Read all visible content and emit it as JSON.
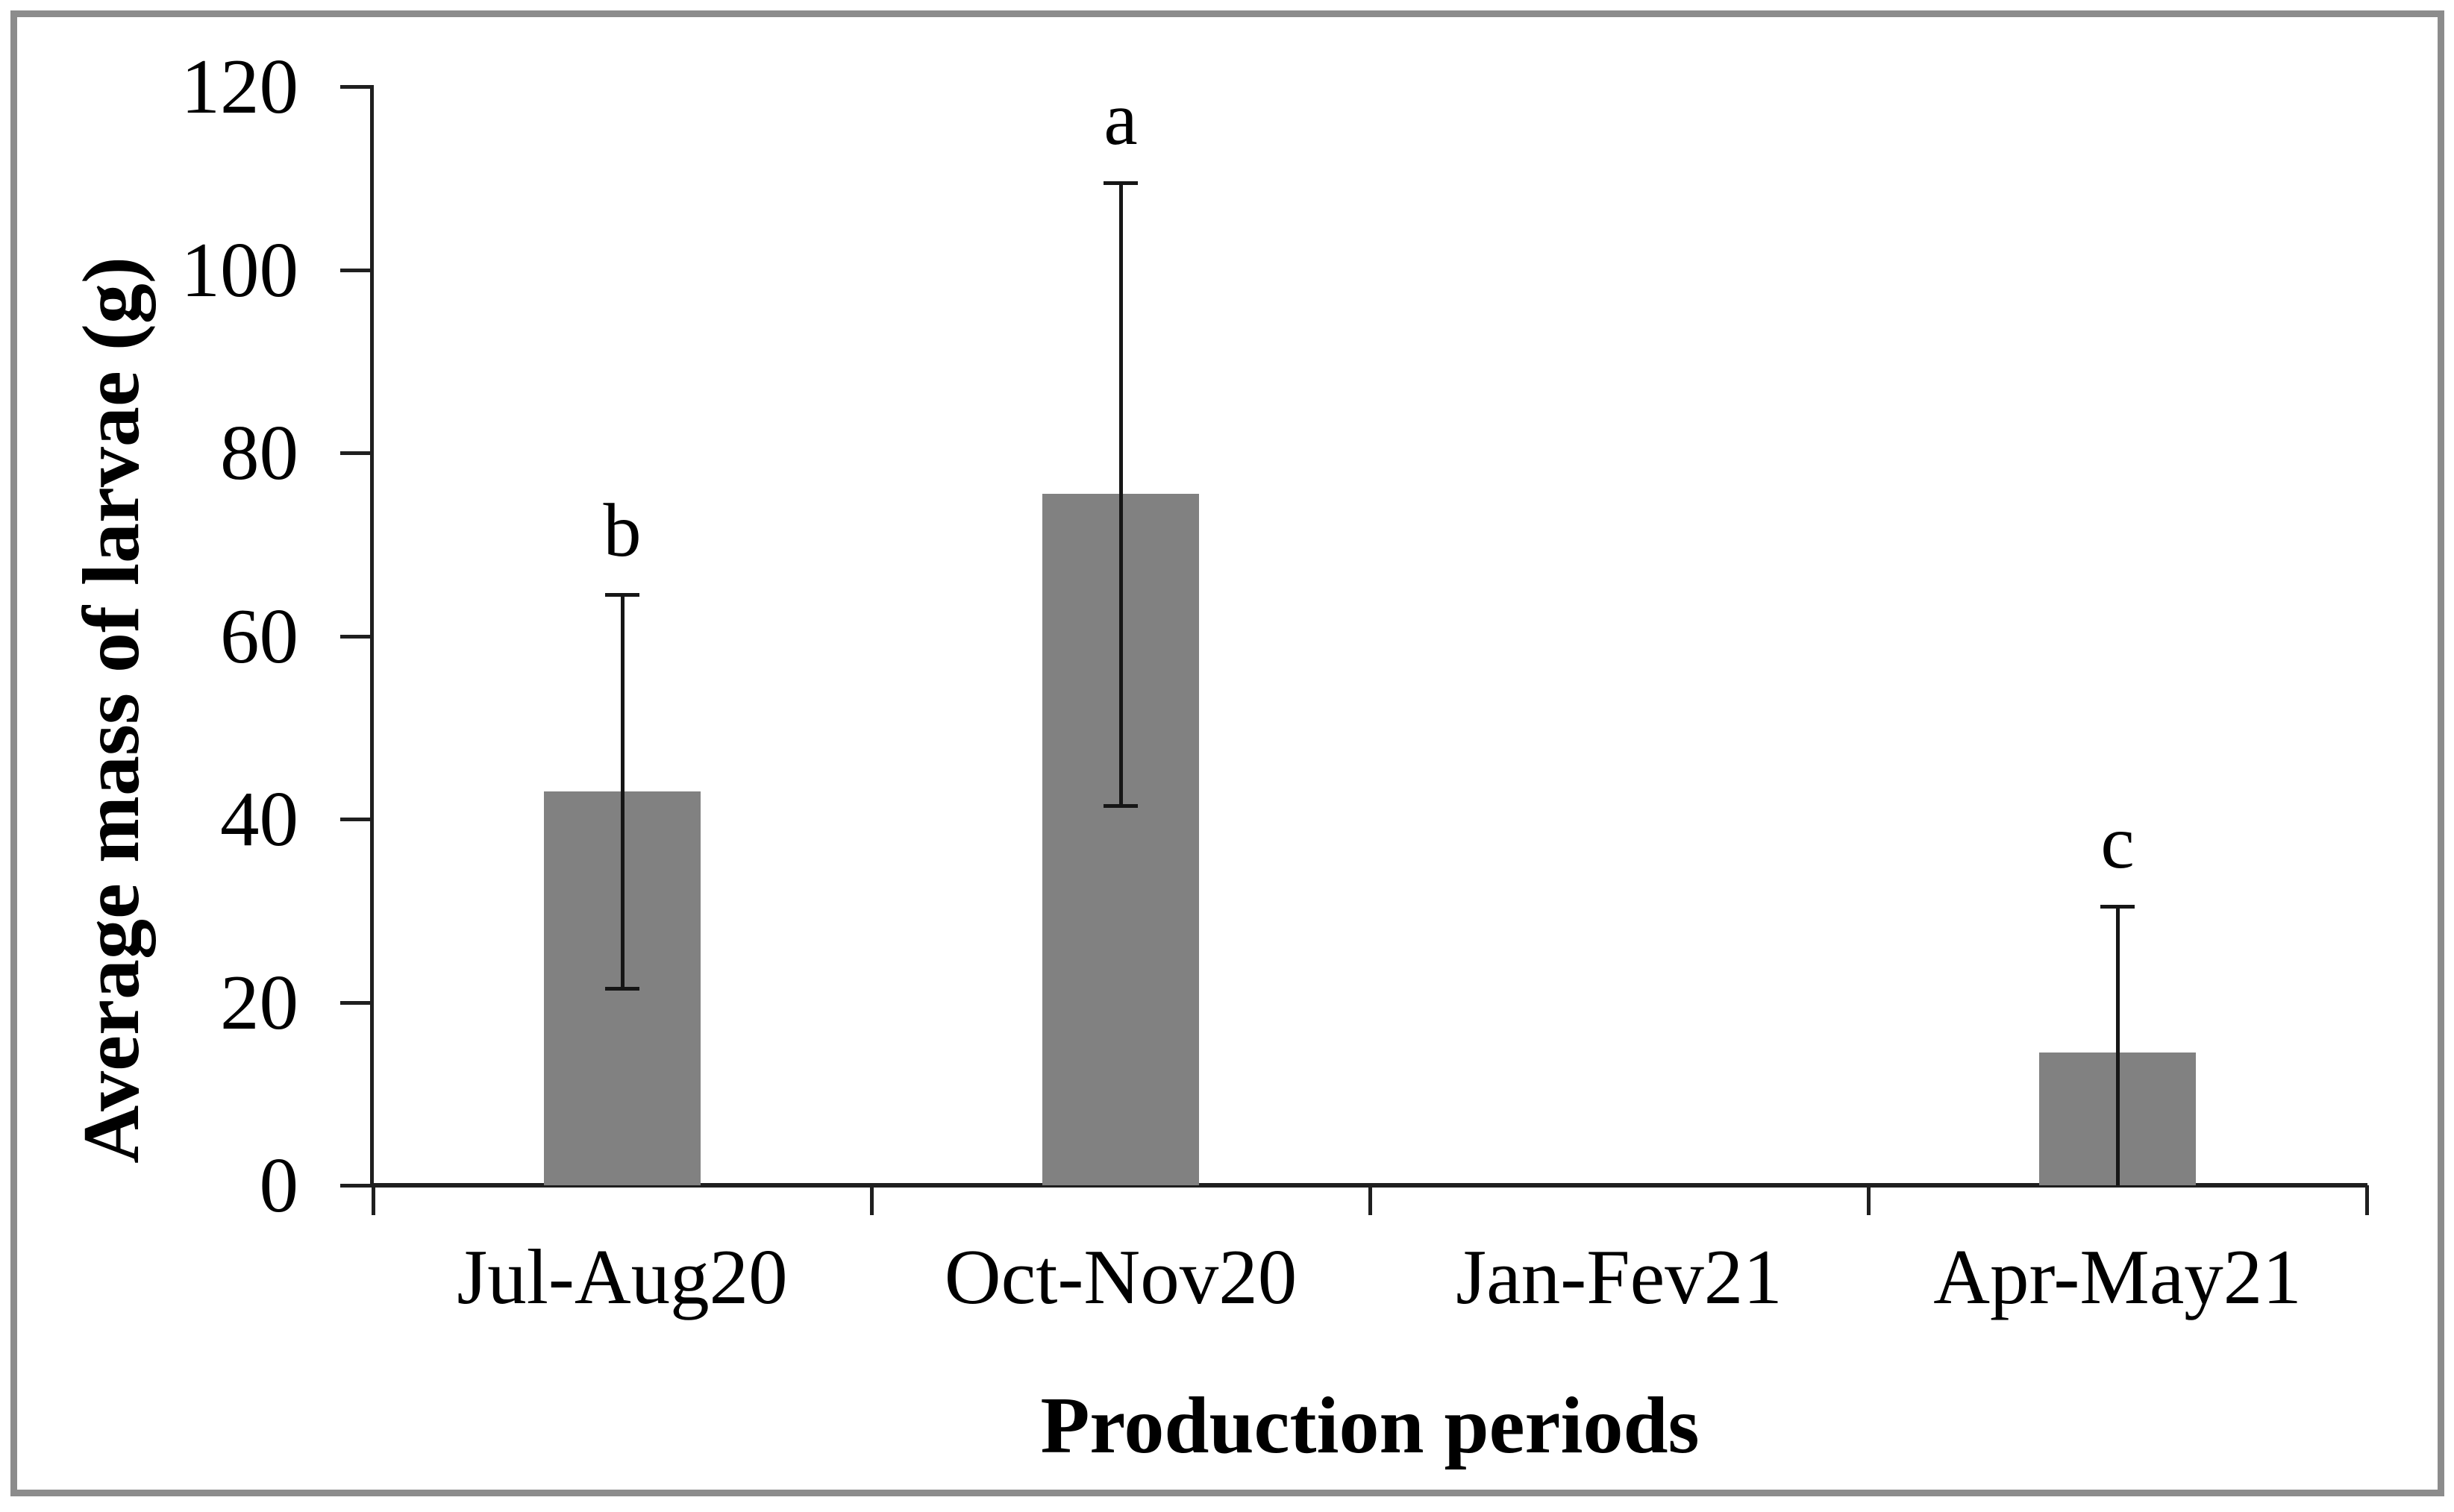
{
  "chart_data": {
    "type": "bar",
    "title": "",
    "categories": [
      "Jul-Aug20",
      "Oct-Nov20",
      "Jan-Fev21",
      "Apr-May21"
    ],
    "values": [
      43,
      75.5,
      0,
      14.5
    ],
    "error_plus": [
      21.5,
      34,
      null,
      16
    ],
    "error_top": [
      64.5,
      109.5,
      null,
      30.5
    ],
    "error_bottom": [
      21.5,
      41.5,
      null,
      0
    ],
    "error_bottom_cap_visible": [
      true,
      true,
      false,
      false
    ],
    "sig_letters": [
      "b",
      "a",
      "",
      "c"
    ],
    "xlabel": "Production periods",
    "ylabel": "Average mass of larvae (g)",
    "ylim": [
      0,
      120
    ],
    "yticks": [
      0,
      20,
      40,
      60,
      80,
      100,
      120
    ],
    "grid": false,
    "legend": false,
    "bar_color": "#818181",
    "axis_color": "#1f1f1f",
    "frame_border_color": "#8c8c8c"
  }
}
